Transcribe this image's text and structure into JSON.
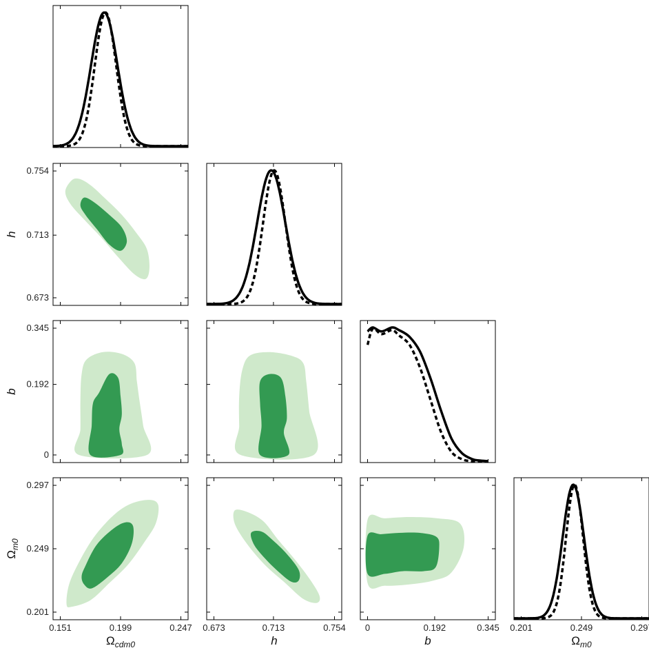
{
  "chart_data": {
    "type": "triangle-corner-plot",
    "parameters": [
      {
        "key": "omega_cdm0",
        "label_main": "Ω",
        "label_sub": "cdm0",
        "italic": false,
        "ticks": [
          "0.151",
          "0.199",
          "0.247"
        ],
        "range": [
          0.151,
          0.247
        ]
      },
      {
        "key": "h",
        "label_main": "h",
        "label_sub": "",
        "italic": true,
        "ticks": [
          "0.673",
          "0.713",
          "0.754"
        ],
        "range": [
          0.673,
          0.754
        ]
      },
      {
        "key": "b",
        "label_main": "b",
        "label_sub": "",
        "italic": true,
        "ticks": [
          "0",
          "0.192",
          "0.345"
        ],
        "range": [
          0,
          0.345
        ]
      },
      {
        "key": "omega_m0",
        "label_main": "Ω",
        "label_sub": "m0",
        "italic": false,
        "ticks": [
          "0.201",
          "0.249",
          "0.297"
        ],
        "range": [
          0.201,
          0.297
        ]
      }
    ],
    "colors": {
      "inner": "#339a52",
      "outer": "#cfe9cb",
      "curve": "#000000"
    },
    "marginals": {
      "omega_cdm0": {
        "solid": {
          "mean": 0.186,
          "sd": 0.0105
        },
        "dashed": {
          "mean": 0.187,
          "sd": 0.0085
        }
      },
      "h": {
        "solid": {
          "mean": 0.7115,
          "sd": 0.0095
        },
        "dashed": {
          "mean": 0.7135,
          "sd": 0.0075
        }
      },
      "omega_m0": {
        "solid": {
          "mean": 0.2425,
          "sd": 0.0085
        },
        "dashed": {
          "mean": 0.2435,
          "sd": 0.0068
        }
      },
      "b": {
        "solid_x": [
          0.0,
          0.015,
          0.04,
          0.07,
          0.09,
          0.12,
          0.15,
          0.18,
          0.21,
          0.24,
          0.27,
          0.3,
          0.32,
          0.345
        ],
        "solid_y": [
          0.97,
          1.0,
          0.97,
          1.0,
          0.98,
          0.93,
          0.82,
          0.62,
          0.38,
          0.17,
          0.06,
          0.015,
          0.005,
          0.0
        ],
        "dashed_x": [
          0.0,
          0.015,
          0.04,
          0.07,
          0.09,
          0.12,
          0.15,
          0.18,
          0.21,
          0.24,
          0.27,
          0.3,
          0.345
        ],
        "dashed_y": [
          0.87,
          0.99,
          0.95,
          0.98,
          0.94,
          0.87,
          0.7,
          0.46,
          0.22,
          0.07,
          0.015,
          0.0,
          0.0
        ]
      }
    },
    "contours": [
      {
        "x": "omega_cdm0",
        "y": "h",
        "outer": [
          [
            0.16,
            0.748
          ],
          [
            0.166,
            0.749
          ],
          [
            0.175,
            0.745
          ],
          [
            0.186,
            0.737
          ],
          [
            0.2,
            0.726
          ],
          [
            0.212,
            0.714
          ],
          [
            0.22,
            0.704
          ],
          [
            0.222,
            0.692
          ],
          [
            0.219,
            0.685
          ],
          [
            0.21,
            0.688
          ],
          [
            0.197,
            0.699
          ],
          [
            0.183,
            0.712
          ],
          [
            0.17,
            0.723
          ],
          [
            0.159,
            0.733
          ],
          [
            0.155,
            0.741
          ]
        ],
        "inner": [
          [
            0.17,
            0.737
          ],
          [
            0.178,
            0.734
          ],
          [
            0.19,
            0.726
          ],
          [
            0.2,
            0.718
          ],
          [
            0.204,
            0.709
          ],
          [
            0.199,
            0.703
          ],
          [
            0.19,
            0.707
          ],
          [
            0.18,
            0.717
          ],
          [
            0.171,
            0.726
          ],
          [
            0.167,
            0.732
          ]
        ]
      },
      {
        "x": "omega_cdm0",
        "y": "b",
        "outer": [
          [
            0.166,
            0.0
          ],
          [
            0.167,
            0.07
          ],
          [
            0.167,
            0.15
          ],
          [
            0.168,
            0.22
          ],
          [
            0.172,
            0.26
          ],
          [
            0.185,
            0.28
          ],
          [
            0.2,
            0.275
          ],
          [
            0.21,
            0.25
          ],
          [
            0.212,
            0.2
          ],
          [
            0.214,
            0.15
          ],
          [
            0.217,
            0.08
          ],
          [
            0.22,
            0.0
          ]
        ],
        "inner": [
          [
            0.175,
            0.0
          ],
          [
            0.176,
            0.08
          ],
          [
            0.177,
            0.14
          ],
          [
            0.182,
            0.17
          ],
          [
            0.19,
            0.22
          ],
          [
            0.197,
            0.21
          ],
          [
            0.199,
            0.16
          ],
          [
            0.2,
            0.11
          ],
          [
            0.198,
            0.07
          ],
          [
            0.2,
            0.03
          ],
          [
            0.199,
            0.0
          ]
        ]
      },
      {
        "x": "omega_cdm0",
        "y": "omega_m0",
        "outer": [
          [
            0.156,
            0.207
          ],
          [
            0.16,
            0.205
          ],
          [
            0.175,
            0.21
          ],
          [
            0.19,
            0.223
          ],
          [
            0.205,
            0.237
          ],
          [
            0.218,
            0.254
          ],
          [
            0.227,
            0.268
          ],
          [
            0.229,
            0.282
          ],
          [
            0.222,
            0.286
          ],
          [
            0.207,
            0.283
          ],
          [
            0.193,
            0.274
          ],
          [
            0.178,
            0.258
          ],
          [
            0.166,
            0.239
          ],
          [
            0.158,
            0.222
          ]
        ],
        "inner": [
          [
            0.17,
            0.222
          ],
          [
            0.176,
            0.219
          ],
          [
            0.188,
            0.227
          ],
          [
            0.2,
            0.238
          ],
          [
            0.208,
            0.253
          ],
          [
            0.209,
            0.266
          ],
          [
            0.203,
            0.269
          ],
          [
            0.193,
            0.264
          ],
          [
            0.18,
            0.252
          ],
          [
            0.171,
            0.236
          ],
          [
            0.168,
            0.228
          ]
        ]
      },
      {
        "x": "h",
        "y": "b",
        "outer": [
          [
            0.691,
            0.0
          ],
          [
            0.69,
            0.08
          ],
          [
            0.69,
            0.16
          ],
          [
            0.692,
            0.23
          ],
          [
            0.697,
            0.27
          ],
          [
            0.71,
            0.28
          ],
          [
            0.725,
            0.27
          ],
          [
            0.733,
            0.25
          ],
          [
            0.735,
            0.2
          ],
          [
            0.737,
            0.12
          ],
          [
            0.74,
            0.0
          ]
        ],
        "inner": [
          [
            0.704,
            0.0
          ],
          [
            0.705,
            0.08
          ],
          [
            0.704,
            0.14
          ],
          [
            0.704,
            0.2
          ],
          [
            0.71,
            0.22
          ],
          [
            0.718,
            0.21
          ],
          [
            0.721,
            0.16
          ],
          [
            0.722,
            0.1
          ],
          [
            0.72,
            0.06
          ],
          [
            0.723,
            0.0
          ]
        ]
      },
      {
        "x": "h",
        "y": "omega_m0",
        "outer": [
          [
            0.687,
            0.278
          ],
          [
            0.695,
            0.277
          ],
          [
            0.706,
            0.27
          ],
          [
            0.716,
            0.256
          ],
          [
            0.728,
            0.24
          ],
          [
            0.738,
            0.225
          ],
          [
            0.744,
            0.213
          ],
          [
            0.742,
            0.208
          ],
          [
            0.733,
            0.211
          ],
          [
            0.72,
            0.224
          ],
          [
            0.707,
            0.237
          ],
          [
            0.695,
            0.253
          ],
          [
            0.687,
            0.268
          ]
        ],
        "inner": [
          [
            0.698,
            0.261
          ],
          [
            0.705,
            0.262
          ],
          [
            0.713,
            0.255
          ],
          [
            0.722,
            0.245
          ],
          [
            0.73,
            0.233
          ],
          [
            0.73,
            0.225
          ],
          [
            0.725,
            0.224
          ],
          [
            0.716,
            0.232
          ],
          [
            0.707,
            0.242
          ],
          [
            0.7,
            0.252
          ]
        ]
      },
      {
        "x": "b",
        "y": "omega_m0",
        "outer": [
          [
            0.0,
            0.223
          ],
          [
            0.05,
            0.221
          ],
          [
            0.12,
            0.222
          ],
          [
            0.19,
            0.225
          ],
          [
            0.24,
            0.231
          ],
          [
            0.275,
            0.25
          ],
          [
            0.265,
            0.268
          ],
          [
            0.2,
            0.272
          ],
          [
            0.12,
            0.273
          ],
          [
            0.05,
            0.272
          ],
          [
            0.0,
            0.271
          ]
        ],
        "inner": [
          [
            0.0,
            0.23
          ],
          [
            0.05,
            0.23
          ],
          [
            0.1,
            0.232
          ],
          [
            0.16,
            0.232
          ],
          [
            0.195,
            0.235
          ],
          [
            0.205,
            0.25
          ],
          [
            0.197,
            0.258
          ],
          [
            0.15,
            0.261
          ],
          [
            0.09,
            0.261
          ],
          [
            0.04,
            0.26
          ],
          [
            0.0,
            0.259
          ]
        ]
      }
    ]
  }
}
